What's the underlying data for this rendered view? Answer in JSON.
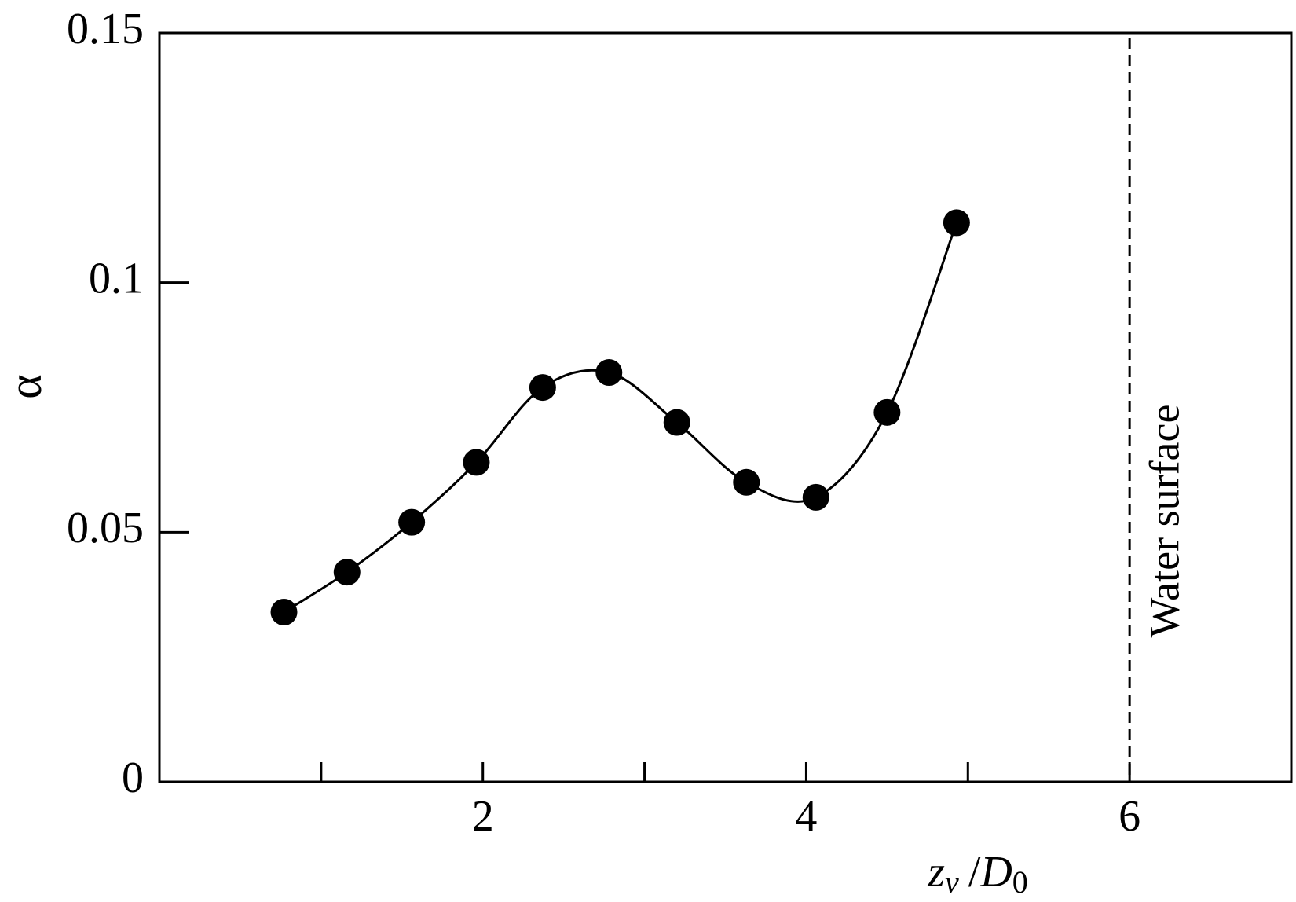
{
  "chart_data": {
    "type": "scatter",
    "xlabel": "z_v /D_0",
    "xlabel_parts": {
      "var": "z",
      "var_sub": "v",
      "slash": "/",
      "denom": "D",
      "denom_sub": "0"
    },
    "ylabel": "α",
    "xlim": [
      0,
      7.0
    ],
    "ylim": [
      0,
      0.15
    ],
    "x_ticks": [
      1,
      2,
      3,
      4,
      5,
      6
    ],
    "x_tick_labels": [
      "",
      "2",
      "",
      "4",
      "",
      "6"
    ],
    "y_ticks": [
      0,
      0.05,
      0.1,
      0.15
    ],
    "y_tick_labels": [
      "0",
      "0.05",
      "0.1",
      "0.15"
    ],
    "grid": false,
    "series": [
      {
        "marker": "filled-circle",
        "line": "smooth-curve",
        "x": [
          0.77,
          1.16,
          1.56,
          1.96,
          2.37,
          2.78,
          3.2,
          3.63,
          4.06,
          4.5,
          4.93
        ],
        "y": [
          0.034,
          0.042,
          0.052,
          0.064,
          0.079,
          0.082,
          0.072,
          0.06,
          0.057,
          0.074,
          0.112
        ]
      }
    ],
    "reference_line": {
      "x": 6.0,
      "style": "dashed",
      "label": "Water surface"
    },
    "colors": {
      "ink": "#000000",
      "background": "#ffffff"
    }
  }
}
